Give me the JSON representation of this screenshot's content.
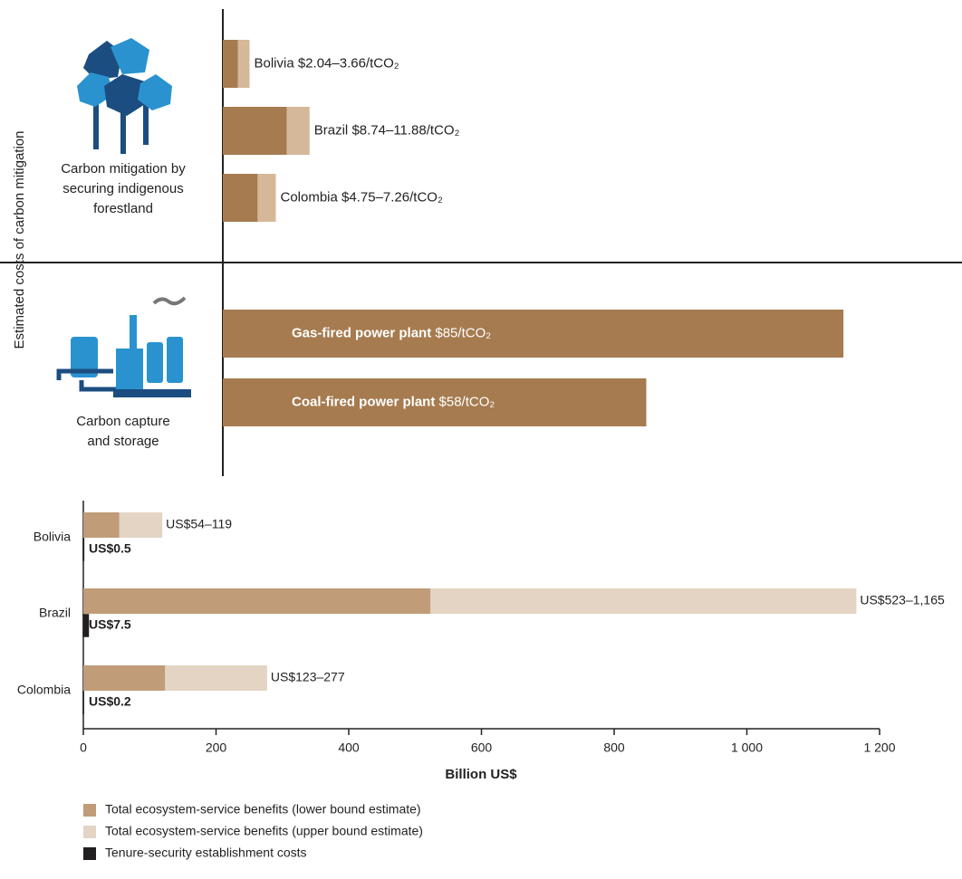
{
  "chart_data": [
    {
      "type": "bar",
      "orientation": "horizontal",
      "ylabel": "Estimated costs of carbon mitigation",
      "annotations": [
        "Carbon mitigation by securing indigenous forestland",
        "Carbon capture and storage"
      ],
      "categories": [
        "Bolivia",
        "Brazil",
        "Colombia",
        "Gas-fired power plant",
        "Coal-fired power plant"
      ],
      "series": [
        {
          "color": "#a67b4f",
          "values": [
            2.04,
            8.74,
            4.75,
            85,
            58
          ]
        },
        {
          "color": "#d5b89a",
          "values": [
            3.66,
            11.88,
            7.26,
            null,
            null
          ]
        }
      ],
      "value_labels": [
        "$2.04–3.66/tCO₂",
        "$8.74–11.88/tCO₂",
        "$4.75–7.26/tCO₂",
        "$85/tCO₂",
        "$58/tCO₂"
      ]
    },
    {
      "type": "bar",
      "orientation": "horizontal",
      "xlabel": "Billion US$",
      "categories": [
        "Bolivia",
        "Brazil",
        "Colombia"
      ],
      "series": [
        {
          "name": "Total ecosystem-service benefits (lower bound estimate)",
          "color": "#c09c78",
          "values": [
            54,
            523,
            123
          ]
        },
        {
          "name": "Total ecosystem-service benefits (upper bound estimate)",
          "color": "#e3d4c3",
          "values": [
            119,
            1165,
            277
          ]
        },
        {
          "name": "Tenure-security establishment costs",
          "color": "#231f20",
          "values": [
            0.5,
            7.5,
            0.2
          ],
          "value_labels": [
            "US$0.5",
            "US$7.5",
            "US$0.2"
          ]
        }
      ],
      "value_labels": [
        "US$54–119",
        "US$523–1,165",
        "US$123–277"
      ],
      "xlim": [
        0,
        1200
      ],
      "xticks": [
        0,
        200,
        400,
        600,
        800,
        {
          "value": 1000,
          "label": "1 000"
        },
        {
          "value": 1200,
          "label": "1 200"
        }
      ]
    }
  ]
}
